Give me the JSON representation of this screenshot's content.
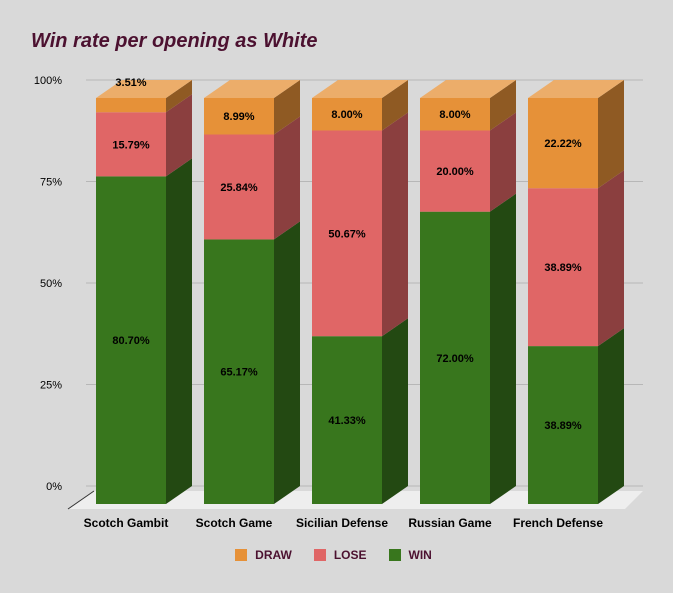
{
  "chart_data": {
    "type": "bar",
    "stacked": true,
    "title": "Win rate per opening as White",
    "xlabel": "",
    "ylabel": "",
    "ylim": [
      0,
      100
    ],
    "yticks": [
      "0%",
      "25%",
      "50%",
      "75%",
      "100%"
    ],
    "grid": true,
    "legend_position": "bottom",
    "categories": [
      "Scotch Gambit",
      "Scotch Game",
      "Sicilian Defense",
      "Russian Game",
      "French Defense"
    ],
    "series": [
      {
        "name": "WIN",
        "color": "#38761d",
        "values": [
          80.7,
          65.17,
          41.33,
          72.0,
          38.89
        ],
        "labels": [
          "80.70%",
          "65.17%",
          "41.33%",
          "72.00%",
          "38.89%"
        ]
      },
      {
        "name": "LOSE",
        "color": "#e06666",
        "values": [
          15.79,
          25.84,
          50.67,
          20.0,
          38.89
        ],
        "labels": [
          "15.79%",
          "25.84%",
          "50.67%",
          "20.00%",
          "38.89%"
        ]
      },
      {
        "name": "DRAW",
        "color": "#e69138",
        "values": [
          3.51,
          8.99,
          8.0,
          8.0,
          22.22
        ],
        "labels": [
          "3.51%",
          "8.99%",
          "8.00%",
          "8.00%",
          "22.22%"
        ]
      }
    ],
    "legend_order": [
      "DRAW",
      "LOSE",
      "WIN"
    ]
  }
}
